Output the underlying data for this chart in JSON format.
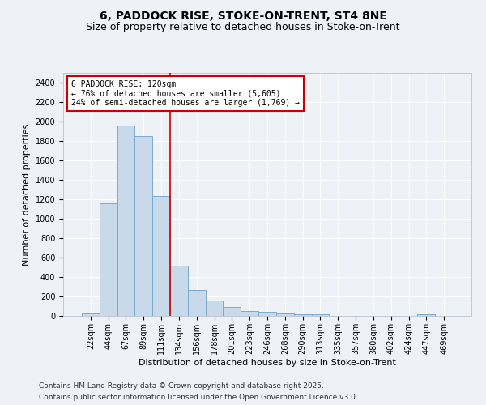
{
  "title": "6, PADDOCK RISE, STOKE-ON-TRENT, ST4 8NE",
  "subtitle": "Size of property relative to detached houses in Stoke-on-Trent",
  "xlabel": "Distribution of detached houses by size in Stoke-on-Trent",
  "ylabel": "Number of detached properties",
  "categories": [
    "22sqm",
    "44sqm",
    "67sqm",
    "89sqm",
    "111sqm",
    "134sqm",
    "156sqm",
    "178sqm",
    "201sqm",
    "223sqm",
    "246sqm",
    "268sqm",
    "290sqm",
    "313sqm",
    "335sqm",
    "357sqm",
    "380sqm",
    "402sqm",
    "424sqm",
    "447sqm",
    "469sqm"
  ],
  "values": [
    25,
    1155,
    1960,
    1850,
    1230,
    515,
    270,
    155,
    90,
    48,
    42,
    22,
    20,
    14,
    0,
    0,
    0,
    0,
    0,
    14,
    0
  ],
  "bar_color": "#c8d9ea",
  "bar_edgecolor": "#7aaace",
  "property_label": "6 PADDOCK RISE: 120sqm",
  "annotation_line1": "← 76% of detached houses are smaller (5,605)",
  "annotation_line2": "24% of semi-detached houses are larger (1,769) →",
  "annotation_box_facecolor": "#ffffff",
  "annotation_box_edgecolor": "#cc0000",
  "vline_color": "#cc0000",
  "vline_x": 4.5,
  "ylim": [
    0,
    2500
  ],
  "yticks": [
    0,
    200,
    400,
    600,
    800,
    1000,
    1200,
    1400,
    1600,
    1800,
    2000,
    2200,
    2400
  ],
  "background_color": "#eef2f7",
  "grid_color": "#ffffff",
  "footer1": "Contains HM Land Registry data © Crown copyright and database right 2025.",
  "footer2": "Contains public sector information licensed under the Open Government Licence v3.0.",
  "title_fontsize": 10,
  "subtitle_fontsize": 9,
  "axis_label_fontsize": 8,
  "tick_fontsize": 7,
  "annotation_fontsize": 7,
  "footer_fontsize": 6.5
}
